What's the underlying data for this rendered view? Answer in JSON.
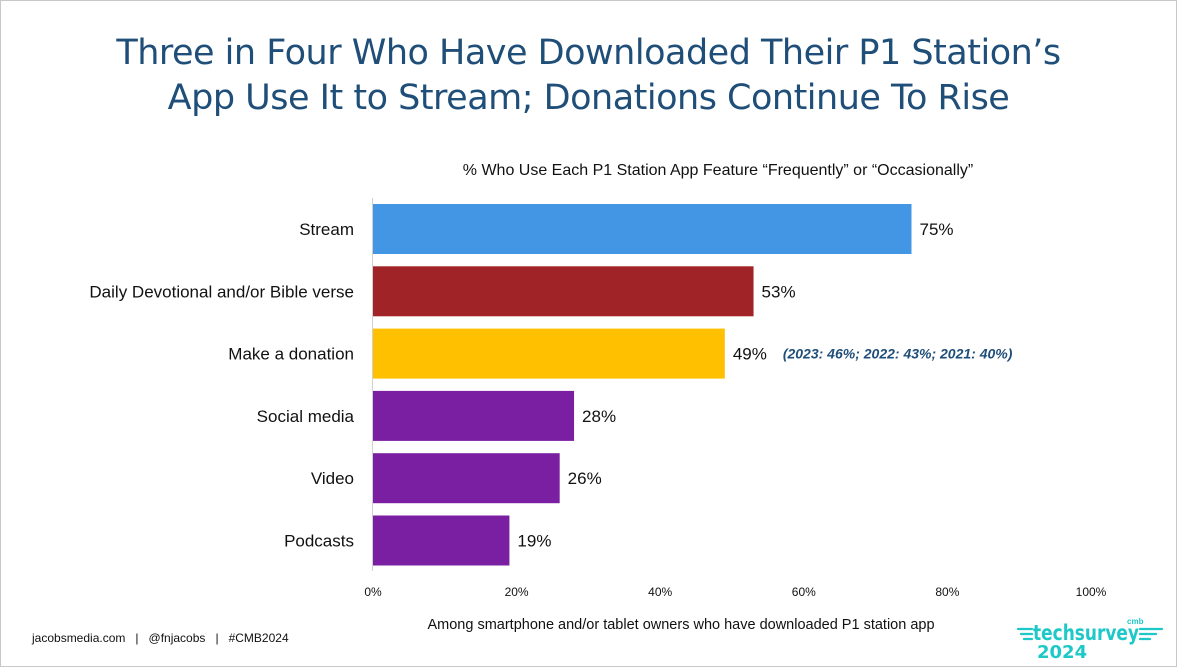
{
  "title_line1": "Three in Four Who Have Downloaded Their P1 Station’s",
  "title_line2": "App Use It to Stream; Donations Continue To Rise",
  "footnote": "Among smartphone and/or tablet owners who have downloaded P1 station app",
  "footer": {
    "site": "jacobsmedia.com",
    "handle": "@fnjacobs",
    "hashtag": "#CMB2024",
    "separator": "|"
  },
  "logo": {
    "small_text": "cmb",
    "word": "techsurvey",
    "year": "2024",
    "color": "#1ec8c8"
  },
  "chart_data": {
    "type": "bar",
    "orientation": "horizontal",
    "title": "% Who Use Each P1 Station App Feature “Frequently” or “Occasionally”",
    "categories": [
      "Stream",
      "Daily Devotional and/or Bible verse",
      "Make a donation",
      "Social media",
      "Video",
      "Podcasts"
    ],
    "values": [
      75,
      53,
      49,
      28,
      26,
      19
    ],
    "value_labels": [
      "75%",
      "53%",
      "49%",
      "28%",
      "26%",
      "19%"
    ],
    "colors": [
      "#4296e3",
      "#a02427",
      "#ffc000",
      "#7b1fa2",
      "#7b1fa2",
      "#7b1fa2"
    ],
    "xlim": [
      0,
      100
    ],
    "xticks": [
      0,
      20,
      40,
      60,
      80,
      100
    ],
    "xtick_labels": [
      "0%",
      "20%",
      "40%",
      "60%",
      "80%",
      "100%"
    ],
    "annotations": [
      {
        "category": "Make a donation",
        "text": "(2023: 46%; 2022: 43%; 2021: 40%)",
        "color": "#1f4e79"
      }
    ],
    "grid": false,
    "legend": "none"
  }
}
